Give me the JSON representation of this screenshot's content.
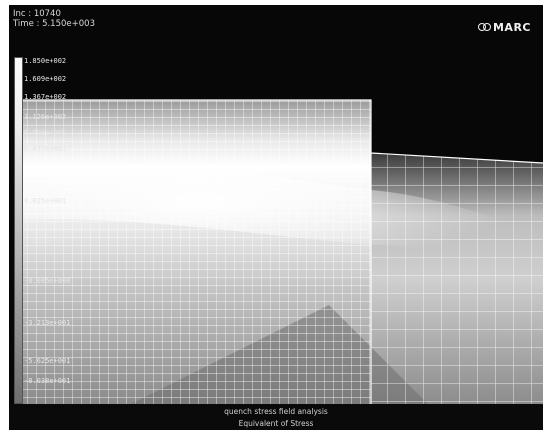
{
  "header": {
    "inc_line": "Inc : 10740",
    "time_line": "Time : 5.150e+003"
  },
  "brand": {
    "logo_text": "MARC"
  },
  "legend": {
    "labels": [
      "1.850e+002",
      "1.609e+002",
      "1.367e+002",
      "1.126e+002",
      "8.850e+001",
      "6.437e+001",
      "4.025e+001",
      "1.612e+001",
      "-8.005e+000",
      "-3.213e+001",
      "-5.625e+001",
      "-8.038e+001"
    ]
  },
  "footer": {
    "job_title": "quench stress field analysis",
    "result_label": "Equivalent of Stress"
  },
  "colors": {
    "background": "#070707",
    "mesh": "#f2f2f2",
    "text": "#d9d9d9"
  }
}
